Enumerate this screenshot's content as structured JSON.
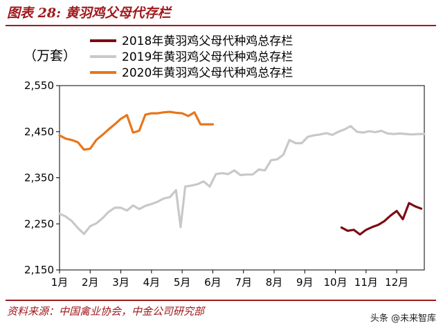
{
  "header": {
    "title": "图表 28:  黄羽鸡父母代存栏",
    "unit": "（万套）"
  },
  "footer": {
    "source": "资料来源：中国禽业协会，中金公司研究部",
    "watermark": "头条 @未来智库"
  },
  "chart_data": {
    "type": "line",
    "title": "图表 28:  黄羽鸡父母代存栏",
    "ylabel": "（万套）",
    "ylim": [
      2150,
      2550
    ],
    "yticks": [
      2150,
      2250,
      2350,
      2450,
      2550
    ],
    "ytick_labels": [
      "2,150",
      "2,250",
      "2,350",
      "2,450",
      "2,550"
    ],
    "xlim": [
      1,
      12.9
    ],
    "xticks": [
      1,
      2,
      3,
      4,
      5,
      6,
      7,
      8,
      9,
      10,
      11,
      12
    ],
    "xtick_labels": [
      "1月",
      "2月",
      "3月",
      "4月",
      "5月",
      "6月",
      "7月",
      "8月",
      "9月",
      "10月",
      "11月",
      "12月"
    ],
    "legend_position": "top",
    "grid": false,
    "series": [
      {
        "name": "2018年黄羽鸡父母代种鸡总存栏",
        "color": "#7b0c12",
        "x": [
          10.2,
          10.4,
          10.6,
          10.8,
          11.0,
          11.2,
          11.4,
          11.6,
          11.8,
          12.0,
          12.2,
          12.4,
          12.6,
          12.8
        ],
        "y": [
          2242,
          2235,
          2237,
          2227,
          2237,
          2243,
          2248,
          2256,
          2268,
          2278,
          2260,
          2295,
          2288,
          2283
        ]
      },
      {
        "name": "2019年黄羽鸡父母代种鸡总存栏",
        "color": "#c8c8c8",
        "x": [
          1.0,
          1.2,
          1.4,
          1.6,
          1.8,
          2.0,
          2.2,
          2.4,
          2.6,
          2.8,
          3.0,
          3.2,
          3.4,
          3.6,
          3.8,
          4.0,
          4.2,
          4.4,
          4.6,
          4.8,
          4.95,
          5.1,
          5.3,
          5.5,
          5.7,
          5.9,
          6.1,
          6.3,
          6.5,
          6.7,
          6.9,
          7.1,
          7.3,
          7.5,
          7.7,
          7.9,
          8.1,
          8.3,
          8.5,
          8.7,
          8.9,
          9.1,
          9.3,
          9.5,
          9.7,
          9.9,
          10.1,
          10.3,
          10.5,
          10.7,
          10.9,
          11.1,
          11.3,
          11.5,
          11.7,
          11.9,
          12.1,
          12.3,
          12.5,
          12.7,
          12.9
        ],
        "y": [
          2272,
          2266,
          2256,
          2241,
          2228,
          2245,
          2251,
          2262,
          2276,
          2285,
          2285,
          2279,
          2290,
          2282,
          2289,
          2293,
          2298,
          2305,
          2308,
          2323,
          2243,
          2331,
          2333,
          2336,
          2342,
          2331,
          2358,
          2360,
          2358,
          2366,
          2356,
          2357,
          2357,
          2368,
          2366,
          2388,
          2390,
          2400,
          2432,
          2425,
          2425,
          2439,
          2442,
          2444,
          2447,
          2443,
          2450,
          2455,
          2462,
          2450,
          2448,
          2451,
          2449,
          2452,
          2446,
          2445,
          2446,
          2445,
          2444,
          2445,
          2445
        ]
      },
      {
        "name": "2020年黄羽鸡父母代种鸡总存栏",
        "color": "#e8751a",
        "x": [
          1.0,
          1.2,
          1.4,
          1.6,
          1.8,
          2.0,
          2.2,
          2.4,
          2.6,
          2.8,
          3.0,
          3.2,
          3.4,
          3.6,
          3.8,
          4.0,
          4.2,
          4.4,
          4.6,
          4.8,
          5.0,
          5.2,
          5.4,
          5.6,
          5.8,
          6.0
        ],
        "y": [
          2442,
          2435,
          2432,
          2427,
          2411,
          2413,
          2432,
          2443,
          2455,
          2466,
          2478,
          2486,
          2448,
          2452,
          2487,
          2490,
          2490,
          2492,
          2493,
          2491,
          2490,
          2484,
          2492,
          2466,
          2466,
          2466
        ]
      }
    ]
  }
}
